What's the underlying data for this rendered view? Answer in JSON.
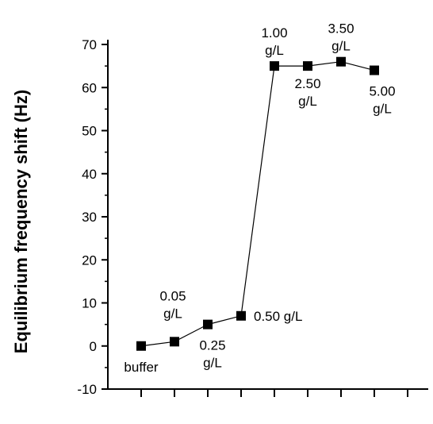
{
  "chart_data": {
    "type": "scatter",
    "ylabel": "Equilibrium frequency shift (Hz)",
    "xlabel": "",
    "ylim": [
      -10,
      70
    ],
    "yticks": [
      -10,
      0,
      10,
      20,
      30,
      40,
      50,
      60,
      70
    ],
    "grid": false,
    "points": [
      {
        "x": 1,
        "y": 0
      },
      {
        "x": 2,
        "y": 1
      },
      {
        "x": 3,
        "y": 5
      },
      {
        "x": 4,
        "y": 7
      },
      {
        "x": 5,
        "y": 65
      },
      {
        "x": 6,
        "y": 65
      },
      {
        "x": 7,
        "y": 66
      },
      {
        "x": 8,
        "y": 64
      }
    ],
    "annotations": [
      {
        "text": "buffer",
        "x": 1,
        "y": 0,
        "align": "below"
      },
      {
        "text": "0.05\ng/L",
        "x": 2,
        "y": 1,
        "align": "above"
      },
      {
        "text": "0.25\ng/L",
        "x": 3,
        "y": 5,
        "align": "below"
      },
      {
        "text": "0.50 g/L",
        "x": 4,
        "y": 7,
        "align": "right"
      },
      {
        "text": "1.00\ng/L",
        "x": 5,
        "y": 65,
        "align": "above"
      },
      {
        "text": "2.50\ng/L",
        "x": 6,
        "y": 65,
        "align": "below"
      },
      {
        "text": "3.50\ng/L",
        "x": 7,
        "y": 66,
        "align": "above"
      },
      {
        "text": "5.00\ng/L",
        "x": 8,
        "y": 64,
        "align": "below"
      }
    ]
  }
}
